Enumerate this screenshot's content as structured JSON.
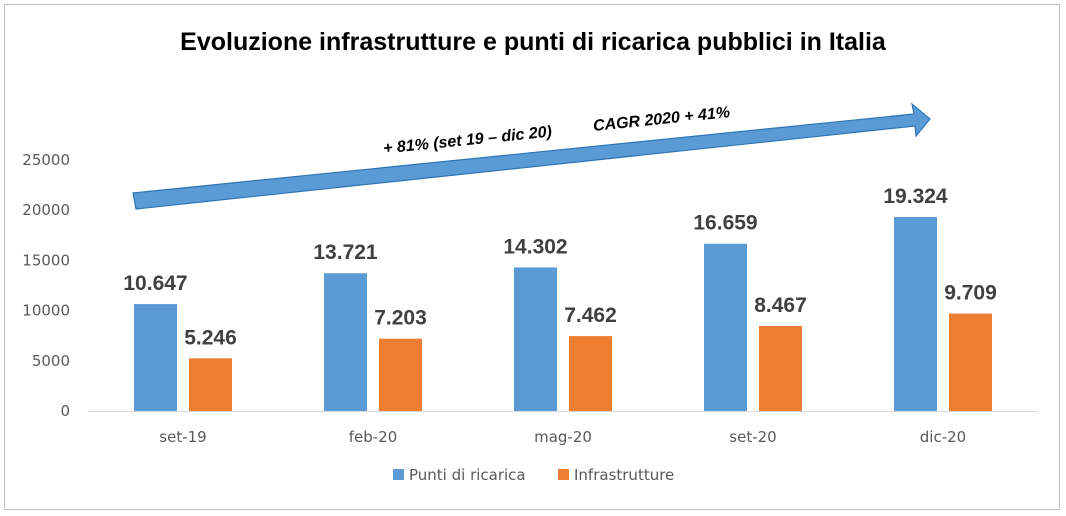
{
  "chart_data": {
    "type": "bar",
    "title": "Evoluzione infrastrutture e punti di ricarica pubblici in Italia",
    "categories": [
      "set-19",
      "feb-20",
      "mag-20",
      "set-20",
      "dic-20"
    ],
    "series": [
      {
        "name": "Punti di ricarica",
        "color": "#5B9BD5",
        "values": [
          10647,
          13721,
          14302,
          16659,
          19324
        ],
        "labels": [
          "10.647",
          "13.721",
          "14.302",
          "16.659",
          "19.324"
        ]
      },
      {
        "name": "Infrastrutture",
        "color": "#ED7D31",
        "values": [
          5246,
          7203,
          7462,
          8467,
          9709
        ],
        "labels": [
          "5.246",
          "7.203",
          "7.462",
          "8.467",
          "9.709"
        ]
      }
    ],
    "ylim": [
      0,
      25000
    ],
    "yticks": [
      "0",
      "5000",
      "10000",
      "15000",
      "20000",
      "25000"
    ],
    "grid": false,
    "legend_position": "bottom",
    "annotation": {
      "text_left": "+ 81% (set 19 – dic 20)",
      "text_right": "CAGR 2020 + 41%",
      "arrow_color": "#5B9BD5"
    }
  }
}
